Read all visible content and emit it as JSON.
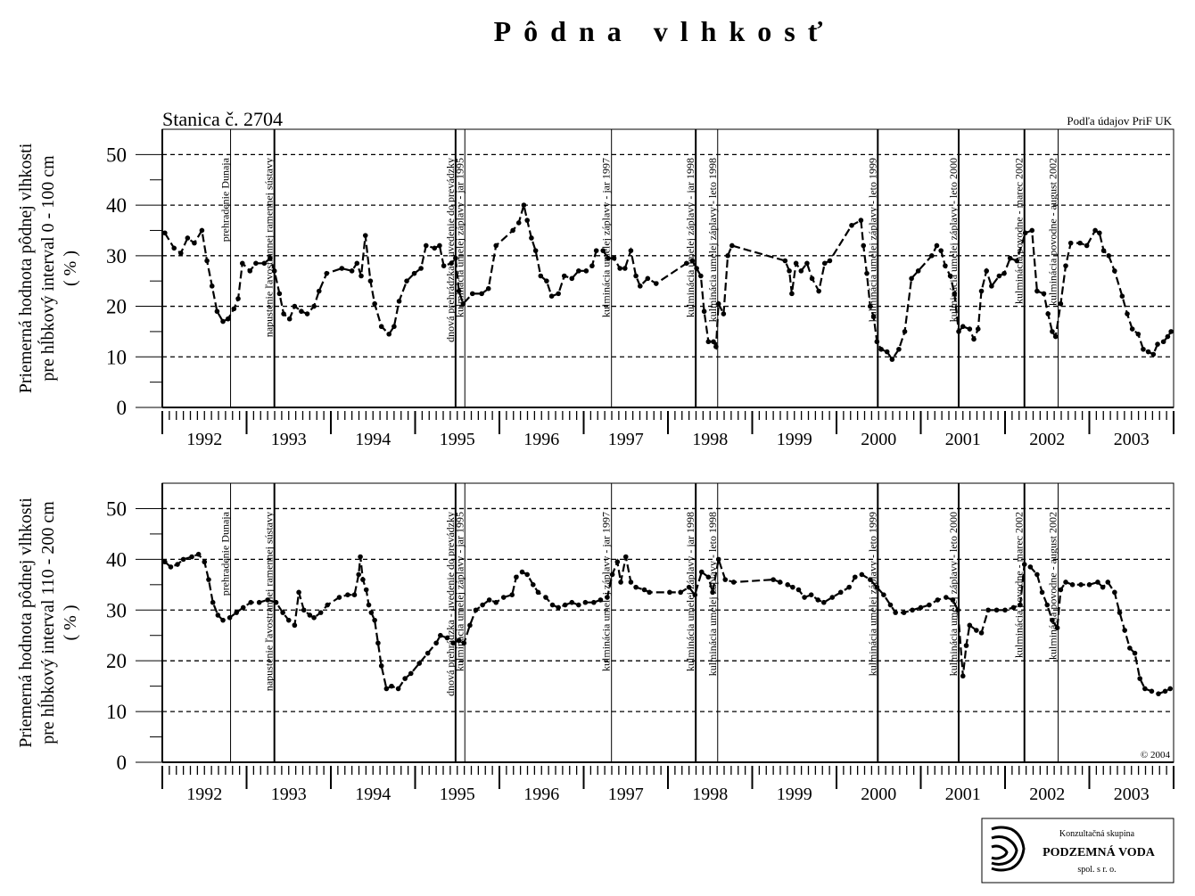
{
  "title": "Pôdna vlhkosť",
  "events": [
    {
      "x": 1992.81,
      "label": "prehradenie Dunaja",
      "line_width": 1
    },
    {
      "x": 1993.33,
      "label": "napustenie ľavostrannej ramennej sústavy",
      "line_width": 2
    },
    {
      "x": 1995.48,
      "label": "dnová prehrádzka - uvedenie do prevádzky",
      "line_width": 2
    },
    {
      "x": 1995.59,
      "label": "kulminácia umelej záplavy - jar 1995",
      "line_width": 1
    },
    {
      "x": 1997.33,
      "label": "kulminácia umelej záplavy - jar 1997",
      "line_width": 1
    },
    {
      "x": 1998.33,
      "label": "kulminácia umelej záplavy - jar 1998",
      "line_width": 2
    },
    {
      "x": 1998.59,
      "label": "kulminácia umelej záplavy - leto 1998",
      "line_width": 1
    },
    {
      "x": 2000.49,
      "label": "kulminácia umelej záplavy - leto 1999",
      "line_width": 2
    },
    {
      "x": 2001.45,
      "label": "kulminácia umelej záplavy - leto 2000",
      "line_width": 2
    },
    {
      "x": 2002.23,
      "label": "kulminácia povodne - marec 2002",
      "line_width": 2
    },
    {
      "x": 2002.63,
      "label": "kulminácia povodne - august 2002",
      "line_width": 1
    }
  ],
  "logo": {
    "line1": "Konzultačná skupina",
    "line2": "PODZEMNÁ VODA",
    "line3": "spol. s r. o."
  },
  "chart_data": [
    {
      "type": "line",
      "title": "Stanica č. 2704",
      "source": "Podľa údajov PriF UK",
      "ylabel": [
        "Priemerná hodnota pôdnej vlhkosti",
        "pre hĺbkový interval 0 - 100 cm",
        "( % )"
      ],
      "color": "#000000",
      "grid": true,
      "xlim": [
        1992,
        2004
      ],
      "ylim": [
        0,
        55
      ],
      "yticks": [
        0,
        10,
        20,
        30,
        40,
        50
      ],
      "xticks": [
        {
          "value": 1992.5,
          "label": "1992"
        },
        {
          "value": 1993.5,
          "label": "1993"
        },
        {
          "value": 1994.5,
          "label": "1994"
        },
        {
          "value": 1995.5,
          "label": "1995"
        },
        {
          "value": 1996.5,
          "label": "1996"
        },
        {
          "value": 1997.5,
          "label": "1997"
        },
        {
          "value": 1998.5,
          "label": "1998"
        },
        {
          "value": 1999.5,
          "label": "1999"
        },
        {
          "value": 2000.5,
          "label": "2000"
        },
        {
          "value": 2001.5,
          "label": "2001"
        },
        {
          "value": 2002.5,
          "label": "2002"
        },
        {
          "value": 2003.5,
          "label": "2003"
        }
      ],
      "x": [
        1992.03,
        1992.14,
        1992.22,
        1992.3,
        1992.38,
        1992.47,
        1992.53,
        1992.59,
        1992.65,
        1992.72,
        1992.78,
        1992.85,
        1992.9,
        1992.95,
        1993.04,
        1993.11,
        1993.21,
        1993.28,
        1993.33,
        1993.39,
        1993.44,
        1993.51,
        1993.57,
        1993.65,
        1993.72,
        1993.8,
        1993.86,
        1993.95,
        1994.13,
        1994.25,
        1994.31,
        1994.36,
        1994.41,
        1994.47,
        1994.52,
        1994.6,
        1994.69,
        1994.75,
        1994.81,
        1994.9,
        1994.99,
        1995.07,
        1995.13,
        1995.23,
        1995.29,
        1995.34,
        1995.43,
        1995.48,
        1995.52,
        1995.57,
        1995.68,
        1995.79,
        1995.87,
        1995.96,
        1996.16,
        1996.23,
        1996.29,
        1996.33,
        1996.38,
        1996.43,
        1996.49,
        1996.56,
        1996.62,
        1996.7,
        1996.77,
        1996.86,
        1996.94,
        1997.03,
        1997.1,
        1997.15,
        1997.23,
        1997.29,
        1997.36,
        1997.43,
        1997.49,
        1997.56,
        1997.62,
        1997.67,
        1997.76,
        1997.86,
        1998.22,
        1998.29,
        1998.34,
        1998.39,
        1998.43,
        1998.48,
        1998.54,
        1998.57,
        1998.6,
        1998.66,
        1998.71,
        1998.76,
        1999.39,
        1999.44,
        1999.47,
        1999.52,
        1999.58,
        1999.65,
        1999.71,
        1999.79,
        1999.86,
        1999.92,
        2000.18,
        2000.29,
        2000.32,
        2000.36,
        2000.4,
        2000.44,
        2000.48,
        2000.53,
        2000.6,
        2000.66,
        2000.74,
        2000.81,
        2000.89,
        2000.97,
        2001.13,
        2001.19,
        2001.24,
        2001.29,
        2001.35,
        2001.4,
        2001.45,
        2001.5,
        2001.58,
        2001.63,
        2001.68,
        2001.72,
        2001.78,
        2001.84,
        2001.93,
        2001.99,
        2002.06,
        2002.14,
        2002.24,
        2002.32,
        2002.38,
        2002.46,
        2002.51,
        2002.56,
        2002.6,
        2002.66,
        2002.72,
        2002.78,
        2002.89,
        2002.97,
        2003.07,
        2003.12,
        2003.17,
        2003.23,
        2003.3,
        2003.39,
        2003.45,
        2003.51,
        2003.58,
        2003.64,
        2003.7,
        2003.76,
        2003.81,
        2003.88,
        2003.93,
        2003.97
      ],
      "values": [
        34.5,
        31.5,
        30.5,
        33.5,
        32.5,
        35,
        29,
        24,
        19,
        17,
        17.5,
        19.5,
        21.5,
        28.5,
        27,
        28.5,
        28.5,
        29.5,
        27,
        22.5,
        18.5,
        17.5,
        20,
        19,
        18.5,
        20,
        23,
        26.5,
        27.5,
        27,
        28.5,
        26,
        34,
        25,
        20.5,
        16,
        14.5,
        16,
        21,
        25,
        26.5,
        27.5,
        32,
        31.5,
        32,
        28,
        28.5,
        29.5,
        23,
        20.5,
        22.5,
        22.5,
        23.5,
        32,
        35,
        36.5,
        40,
        37,
        33.5,
        31,
        26,
        25,
        22,
        22.5,
        26,
        25.5,
        27,
        27,
        28,
        31,
        31,
        29.5,
        29.5,
        27.5,
        27.5,
        31,
        26,
        24,
        25.5,
        24.5,
        28.5,
        29,
        27.5,
        26,
        19,
        13,
        13,
        12,
        20.5,
        18.5,
        30,
        32,
        29,
        27,
        22.5,
        28.5,
        27,
        28.5,
        25.5,
        23,
        28.5,
        29,
        36,
        37,
        32,
        26.5,
        20,
        18,
        13,
        11.5,
        11,
        9.5,
        11.5,
        15,
        25.5,
        27,
        30,
        32,
        31,
        28,
        26,
        22.5,
        15,
        16,
        15.5,
        13.5,
        15.5,
        23,
        27,
        24,
        26,
        26.5,
        29.5,
        29,
        34.5,
        35,
        23,
        22.5,
        18.5,
        15,
        14,
        20.5,
        28,
        32.5,
        32.5,
        32,
        35,
        34.5,
        31,
        30,
        27,
        22,
        18.5,
        15.5,
        14.5,
        11.5,
        11,
        10.5,
        12.5,
        13,
        14,
        15
      ]
    },
    {
      "type": "line",
      "note": "© 2004",
      "ylabel": [
        "Priemerná hodnota pôdnej vlhkosti",
        "pre hĺbkový interval 110 - 200 cm",
        "( % )"
      ],
      "color": "#000000",
      "grid": true,
      "xlim": [
        1992,
        2004
      ],
      "ylim": [
        0,
        55
      ],
      "yticks": [
        0,
        10,
        20,
        30,
        40,
        50
      ],
      "xticks": [
        {
          "value": 1992.5,
          "label": "1992"
        },
        {
          "value": 1993.5,
          "label": "1993"
        },
        {
          "value": 1994.5,
          "label": "1994"
        },
        {
          "value": 1995.5,
          "label": "1995"
        },
        {
          "value": 1996.5,
          "label": "1996"
        },
        {
          "value": 1997.5,
          "label": "1997"
        },
        {
          "value": 1998.5,
          "label": "1998"
        },
        {
          "value": 1999.5,
          "label": "1999"
        },
        {
          "value": 2000.5,
          "label": "2000"
        },
        {
          "value": 2001.5,
          "label": "2001"
        },
        {
          "value": 2002.5,
          "label": "2002"
        },
        {
          "value": 2003.5,
          "label": "2003"
        }
      ],
      "x": [
        1992.03,
        1992.1,
        1992.18,
        1992.25,
        1992.35,
        1992.43,
        1992.5,
        1992.55,
        1992.6,
        1992.66,
        1992.72,
        1992.8,
        1992.88,
        1992.96,
        1993.05,
        1993.15,
        1993.25,
        1993.35,
        1993.43,
        1993.5,
        1993.57,
        1993.62,
        1993.68,
        1993.75,
        1993.8,
        1993.88,
        1993.96,
        1994.1,
        1994.2,
        1994.28,
        1994.33,
        1994.35,
        1994.38,
        1994.42,
        1994.45,
        1994.48,
        1994.52,
        1994.56,
        1994.6,
        1994.66,
        1994.72,
        1994.8,
        1994.88,
        1994.95,
        1995.05,
        1995.15,
        1995.25,
        1995.3,
        1995.38,
        1995.45,
        1995.52,
        1995.58,
        1995.65,
        1995.72,
        1995.8,
        1995.88,
        1995.96,
        1996.05,
        1996.15,
        1996.2,
        1996.27,
        1996.33,
        1996.4,
        1996.46,
        1996.55,
        1996.63,
        1996.7,
        1996.78,
        1996.86,
        1996.94,
        1997.02,
        1997.12,
        1997.2,
        1997.28,
        1997.34,
        1997.4,
        1997.44,
        1997.5,
        1997.56,
        1997.62,
        1997.72,
        1997.78,
        1998.02,
        1998.15,
        1998.25,
        1998.32,
        1998.4,
        1998.48,
        1998.53,
        1998.6,
        1998.68,
        1998.78,
        1999.25,
        1999.33,
        1999.42,
        1999.48,
        1999.55,
        1999.62,
        1999.7,
        1999.78,
        1999.85,
        1999.95,
        2000.05,
        2000.15,
        2000.22,
        2000.3,
        2000.4,
        2000.48,
        2000.56,
        2000.64,
        2000.7,
        2000.8,
        2000.9,
        2001.0,
        2001.1,
        2001.2,
        2001.3,
        2001.38,
        2001.44,
        2001.5,
        2001.54,
        2001.58,
        2001.66,
        2001.72,
        2001.8,
        2001.9,
        2002.0,
        2002.1,
        2002.18,
        2002.23,
        2002.3,
        2002.38,
        2002.44,
        2002.5,
        2002.56,
        2002.62,
        2002.66,
        2002.72,
        2002.8,
        2002.9,
        2003.0,
        2003.1,
        2003.16,
        2003.22,
        2003.3,
        2003.36,
        2003.42,
        2003.48,
        2003.54,
        2003.6,
        2003.66,
        2003.74,
        2003.82,
        2003.9,
        2003.96
      ],
      "values": [
        39.5,
        38.5,
        39,
        40,
        40.5,
        41,
        39.5,
        36,
        31.5,
        29,
        28,
        28.5,
        29.5,
        30.5,
        31.5,
        31.5,
        32,
        31.5,
        29.5,
        28,
        27,
        33.5,
        30,
        29,
        28.5,
        29.5,
        31,
        32.5,
        33,
        33,
        37,
        40.5,
        36,
        34,
        31,
        29.5,
        28,
        23.5,
        19,
        14.5,
        15,
        14.5,
        16.5,
        17.5,
        19.5,
        21.5,
        23.5,
        25,
        24.5,
        23.5,
        24,
        23.5,
        27,
        30,
        31,
        32,
        31.5,
        32.5,
        33,
        36.5,
        37.5,
        37,
        35,
        33.5,
        32.5,
        31,
        30.5,
        31,
        31.5,
        31,
        31.5,
        31.5,
        32,
        32.5,
        37,
        39.5,
        35.5,
        40.5,
        35.5,
        34.5,
        34,
        33.5,
        33.5,
        33.5,
        34.5,
        33,
        37.5,
        36.5,
        33.5,
        40,
        36,
        35.5,
        36,
        35.5,
        35,
        34.5,
        34,
        32.5,
        33,
        32,
        31.5,
        32.5,
        33.5,
        34.5,
        36.5,
        37,
        36,
        34.5,
        33,
        31,
        29.5,
        29.5,
        30,
        30.5,
        31,
        32,
        32.5,
        32,
        30,
        17,
        23,
        27,
        26,
        25.5,
        30,
        30,
        30,
        30.5,
        31,
        39,
        38.5,
        37,
        33.5,
        31,
        28,
        26.5,
        34,
        35.5,
        35,
        35,
        35,
        35.5,
        34.5,
        35.5,
        33.5,
        29.5,
        26,
        22.5,
        21.5,
        16.5,
        14.5,
        14,
        13.5,
        14,
        14.5
      ]
    }
  ]
}
